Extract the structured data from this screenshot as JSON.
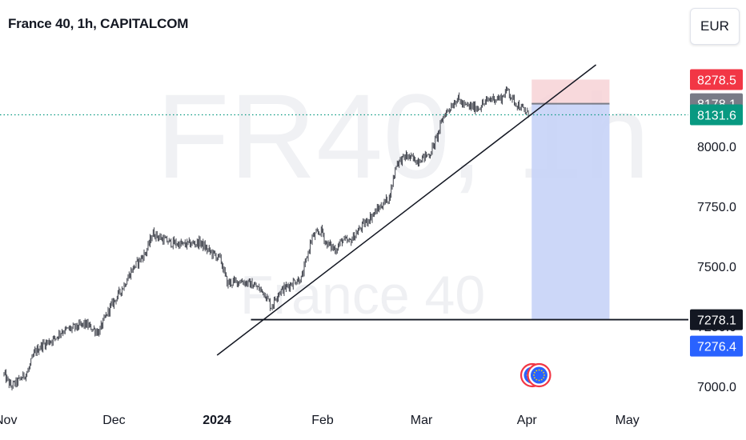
{
  "header": {
    "title": "France 40, 1h, CAPITALCOM",
    "currency_button": "EUR"
  },
  "watermark": {
    "symbol": "FR40, 1h",
    "name": "France 40"
  },
  "colors": {
    "candle": "#131722",
    "current_price_line": "#089981",
    "stop_zone": "#f7d2d6",
    "target_zone": "#c6d3f7",
    "trendline": "#131722"
  },
  "chart_data": {
    "type": "candlestick",
    "title": "France 40, 1h, CAPITALCOM",
    "ylim": [
      6950,
      8420
    ],
    "y_ticks": [
      7000,
      7250,
      7500,
      7750,
      8000
    ],
    "y_tick_labels": [
      "7000.0",
      "7250.0",
      "7500.0",
      "7750.0",
      "8000.0"
    ],
    "x_ticks": [
      "Nov",
      "Dec",
      "2024",
      "Feb",
      "Mar",
      "Apr",
      "May"
    ],
    "price_path": [
      [
        "2023-10-30",
        7050
      ],
      [
        "2023-11-01",
        7000
      ],
      [
        "2023-11-03",
        7020
      ],
      [
        "2023-11-06",
        7060
      ],
      [
        "2023-11-08",
        7140
      ],
      [
        "2023-11-10",
        7170
      ],
      [
        "2023-11-14",
        7200
      ],
      [
        "2023-11-16",
        7230
      ],
      [
        "2023-11-20",
        7245
      ],
      [
        "2023-11-23",
        7260
      ],
      [
        "2023-11-27",
        7225
      ],
      [
        "2023-11-30",
        7320
      ],
      [
        "2023-12-04",
        7410
      ],
      [
        "2023-12-07",
        7490
      ],
      [
        "2023-12-11",
        7560
      ],
      [
        "2023-12-13",
        7640
      ],
      [
        "2023-12-15",
        7620
      ],
      [
        "2023-12-18",
        7600
      ],
      [
        "2023-12-22",
        7590
      ],
      [
        "2023-12-27",
        7600
      ],
      [
        "2023-12-29",
        7570
      ],
      [
        "2024-01-02",
        7530
      ],
      [
        "2024-01-04",
        7430
      ],
      [
        "2024-01-08",
        7440
      ],
      [
        "2024-01-10",
        7430
      ],
      [
        "2024-01-12",
        7420
      ],
      [
        "2024-01-15",
        7390
      ],
      [
        "2024-01-17",
        7330
      ],
      [
        "2024-01-19",
        7390
      ],
      [
        "2024-01-22",
        7420
      ],
      [
        "2024-01-24",
        7440
      ],
      [
        "2024-01-26",
        7450
      ],
      [
        "2024-01-29",
        7620
      ],
      [
        "2024-02-01",
        7650
      ],
      [
        "2024-02-02",
        7600
      ],
      [
        "2024-02-05",
        7570
      ],
      [
        "2024-02-07",
        7610
      ],
      [
        "2024-02-09",
        7600
      ],
      [
        "2024-02-13",
        7670
      ],
      [
        "2024-02-15",
        7700
      ],
      [
        "2024-02-19",
        7760
      ],
      [
        "2024-02-21",
        7790
      ],
      [
        "2024-02-23",
        7930
      ],
      [
        "2024-02-26",
        7960
      ],
      [
        "2024-02-29",
        7940
      ],
      [
        "2024-03-04",
        7970
      ],
      [
        "2024-03-06",
        8040
      ],
      [
        "2024-03-08",
        8130
      ],
      [
        "2024-03-12",
        8200
      ],
      [
        "2024-03-14",
        8170
      ],
      [
        "2024-03-18",
        8160
      ],
      [
        "2024-03-20",
        8180
      ],
      [
        "2024-03-22",
        8200
      ],
      [
        "2024-03-25",
        8200
      ],
      [
        "2024-03-27",
        8240
      ],
      [
        "2024-03-28",
        8200
      ],
      [
        "2024-04-02",
        8131.6
      ]
    ],
    "last_price": 8131.6,
    "last_price_label": "8131.6",
    "trendline": {
      "start": [
        "2024-01-01",
        7130
      ],
      "end": [
        "2024-04-22",
        8340
      ]
    },
    "support_line": {
      "price": 7278.1,
      "from": "2024-01-11",
      "label": "7278.1"
    },
    "position": {
      "type": "short",
      "from": "2024-04-03",
      "to": "2024-04-26",
      "stop": 8278.5,
      "entry": 8178.1,
      "target": 7278.1,
      "stop_label": "8278.5",
      "entry_label": "8178.1"
    },
    "extra_price_label": "7276.4",
    "events": [
      {
        "date": "2024-04-02",
        "price": 7060
      },
      {
        "date": "2024-04-04",
        "price": 7060
      }
    ]
  }
}
